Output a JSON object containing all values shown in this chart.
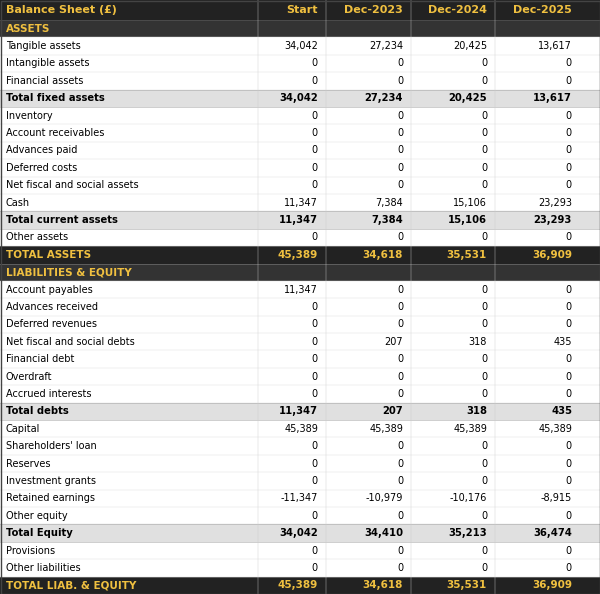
{
  "title": "Balance Sheet (£)",
  "col_headers": [
    "Start",
    "Dec-2023",
    "Dec-2024",
    "Dec-2025"
  ],
  "header_bg": "#222222",
  "header_fg": "#f0c040",
  "section_bg": "#333333",
  "section_fg": "#f0c040",
  "subtotal_bg": "#e0e0e0",
  "subtotal_fg": "#000000",
  "total_bg": "#222222",
  "total_fg": "#f0c040",
  "data_bg": "#ffffff",
  "data_fg": "#000000",
  "rows": [
    {
      "label": "ASSETS",
      "values": [
        null,
        null,
        null,
        null
      ],
      "type": "section"
    },
    {
      "label": "Tangible assets",
      "values": [
        34042,
        27234,
        20425,
        13617
      ],
      "type": "data"
    },
    {
      "label": "Intangible assets",
      "values": [
        0,
        0,
        0,
        0
      ],
      "type": "data"
    },
    {
      "label": "Financial assets",
      "values": [
        0,
        0,
        0,
        0
      ],
      "type": "data"
    },
    {
      "label": "Total fixed assets",
      "values": [
        34042,
        27234,
        20425,
        13617
      ],
      "type": "subtotal"
    },
    {
      "label": "Inventory",
      "values": [
        0,
        0,
        0,
        0
      ],
      "type": "data"
    },
    {
      "label": "Account receivables",
      "values": [
        0,
        0,
        0,
        0
      ],
      "type": "data"
    },
    {
      "label": "Advances paid",
      "values": [
        0,
        0,
        0,
        0
      ],
      "type": "data"
    },
    {
      "label": "Deferred costs",
      "values": [
        0,
        0,
        0,
        0
      ],
      "type": "data"
    },
    {
      "label": "Net fiscal and social assets",
      "values": [
        0,
        0,
        0,
        0
      ],
      "type": "data"
    },
    {
      "label": "Cash",
      "values": [
        11347,
        7384,
        15106,
        23293
      ],
      "type": "data"
    },
    {
      "label": "Total current assets",
      "values": [
        11347,
        7384,
        15106,
        23293
      ],
      "type": "subtotal"
    },
    {
      "label": "Other assets",
      "values": [
        0,
        0,
        0,
        0
      ],
      "type": "data"
    },
    {
      "label": "TOTAL ASSETS",
      "values": [
        45389,
        34618,
        35531,
        36909
      ],
      "type": "total"
    },
    {
      "label": "LIABILITIES & EQUITY",
      "values": [
        null,
        null,
        null,
        null
      ],
      "type": "section"
    },
    {
      "label": "Account payables",
      "values": [
        11347,
        0,
        0,
        0
      ],
      "type": "data"
    },
    {
      "label": "Advances received",
      "values": [
        0,
        0,
        0,
        0
      ],
      "type": "data"
    },
    {
      "label": "Deferred revenues",
      "values": [
        0,
        0,
        0,
        0
      ],
      "type": "data"
    },
    {
      "label": "Net fiscal and social debts",
      "values": [
        0,
        207,
        318,
        435
      ],
      "type": "data"
    },
    {
      "label": "Financial debt",
      "values": [
        0,
        0,
        0,
        0
      ],
      "type": "data"
    },
    {
      "label": "Overdraft",
      "values": [
        0,
        0,
        0,
        0
      ],
      "type": "data"
    },
    {
      "label": "Accrued interests",
      "values": [
        0,
        0,
        0,
        0
      ],
      "type": "data"
    },
    {
      "label": "Total debts",
      "values": [
        11347,
        207,
        318,
        435
      ],
      "type": "subtotal"
    },
    {
      "label": "Capital",
      "values": [
        45389,
        45389,
        45389,
        45389
      ],
      "type": "data"
    },
    {
      "label": "Shareholders' loan",
      "values": [
        0,
        0,
        0,
        0
      ],
      "type": "data"
    },
    {
      "label": "Reserves",
      "values": [
        0,
        0,
        0,
        0
      ],
      "type": "data"
    },
    {
      "label": "Investment grants",
      "values": [
        0,
        0,
        0,
        0
      ],
      "type": "data"
    },
    {
      "label": "Retained earnings",
      "values": [
        -11347,
        -10979,
        -10176,
        -8915
      ],
      "type": "data"
    },
    {
      "label": "Other equity",
      "values": [
        0,
        0,
        0,
        0
      ],
      "type": "data"
    },
    {
      "label": "Total Equity",
      "values": [
        34042,
        34410,
        35213,
        36474
      ],
      "type": "subtotal"
    },
    {
      "label": "Provisions",
      "values": [
        0,
        0,
        0,
        0
      ],
      "type": "data"
    },
    {
      "label": "Other liabilities",
      "values": [
        0,
        0,
        0,
        0
      ],
      "type": "data"
    },
    {
      "label": "TOTAL LIAB. & EQUITY",
      "values": [
        45389,
        34618,
        35531,
        36909
      ],
      "type": "total"
    }
  ]
}
